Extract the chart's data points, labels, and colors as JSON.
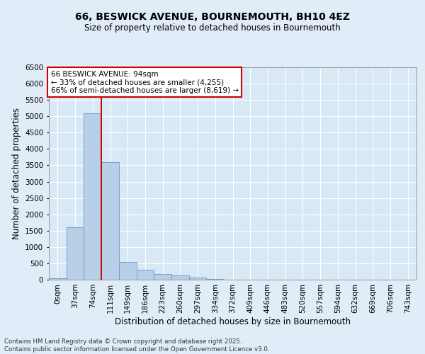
{
  "title_line1": "66, BESWICK AVENUE, BOURNEMOUTH, BH10 4EZ",
  "title_line2": "Size of property relative to detached houses in Bournemouth",
  "xlabel": "Distribution of detached houses by size in Bournemouth",
  "ylabel": "Number of detached properties",
  "categories": [
    "0sqm",
    "37sqm",
    "74sqm",
    "111sqm",
    "149sqm",
    "186sqm",
    "223sqm",
    "260sqm",
    "297sqm",
    "334sqm",
    "372sqm",
    "409sqm",
    "446sqm",
    "483sqm",
    "520sqm",
    "557sqm",
    "594sqm",
    "632sqm",
    "669sqm",
    "706sqm",
    "743sqm"
  ],
  "bar_values": [
    50,
    1600,
    5100,
    3600,
    550,
    310,
    175,
    125,
    75,
    25,
    10,
    5,
    3,
    2,
    1,
    1,
    0,
    0,
    0,
    0,
    0
  ],
  "bar_color": "#b8cfe8",
  "bar_edge_color": "#6699cc",
  "vline_x": 2.5,
  "vline_color": "#cc0000",
  "ylim": [
    0,
    6500
  ],
  "yticks": [
    0,
    500,
    1000,
    1500,
    2000,
    2500,
    3000,
    3500,
    4000,
    4500,
    5000,
    5500,
    6000,
    6500
  ],
  "annotation_text": "66 BESWICK AVENUE: 94sqm\n← 33% of detached houses are smaller (4,255)\n66% of semi-detached houses are larger (8,619) →",
  "annotation_box_color": "#ffffff",
  "annotation_box_edge": "#cc0000",
  "footnote": "Contains HM Land Registry data © Crown copyright and database right 2025.\nContains public sector information licensed under the Open Government Licence v3.0.",
  "bg_color": "#e0ecf8",
  "plot_bg_color": "#d8e8f5",
  "grid_color": "#ffffff",
  "title1_fontsize": 10,
  "title2_fontsize": 8.5,
  "xlabel_fontsize": 8.5,
  "ylabel_fontsize": 8.5,
  "tick_fontsize": 7.5,
  "annot_fontsize": 7.5
}
